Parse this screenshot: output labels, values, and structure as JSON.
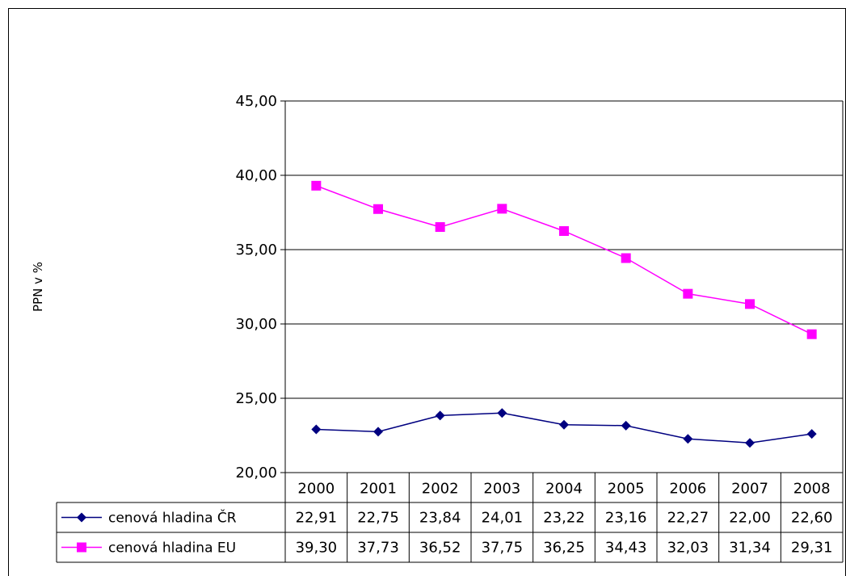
{
  "chart_data": {
    "type": "line",
    "title": "",
    "xlabel": "",
    "ylabel": "PPN v %",
    "ylim": [
      20,
      45
    ],
    "yticks": [
      "20,00",
      "25,00",
      "30,00",
      "35,00",
      "40,00",
      "45,00"
    ],
    "grid": true,
    "legend": "data-table",
    "categories": [
      "2000",
      "2001",
      "2002",
      "2003",
      "2004",
      "2005",
      "2006",
      "2007",
      "2008"
    ],
    "series": [
      {
        "name": "cenová hladina ČR",
        "color": "#000080",
        "marker": "diamond",
        "values": [
          22.91,
          22.75,
          23.84,
          24.01,
          23.22,
          23.16,
          22.27,
          22.0,
          22.6
        ],
        "labels": [
          "22,91",
          "22,75",
          "23,84",
          "24,01",
          "23,22",
          "23,16",
          "22,27",
          "22,00",
          "22,60"
        ]
      },
      {
        "name": "cenová hladina EU",
        "color": "#ff00ff",
        "marker": "square",
        "values": [
          39.3,
          37.73,
          36.52,
          37.75,
          36.25,
          34.43,
          32.03,
          31.34,
          29.31
        ],
        "labels": [
          "39,30",
          "37,73",
          "36,52",
          "37,75",
          "36,25",
          "34,43",
          "32,03",
          "31,34",
          "29,31"
        ]
      }
    ]
  }
}
